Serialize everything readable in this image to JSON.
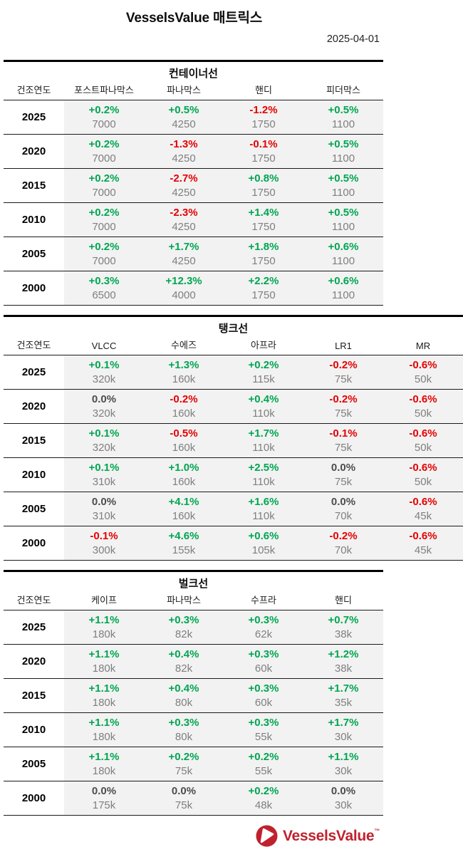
{
  "page": {
    "title": "VesselsValue 매트릭스",
    "date": "2025-04-01"
  },
  "colors": {
    "green": "#00a651",
    "red": "#e60000",
    "neutral": "#4d4d4d",
    "value_gray": "#7f7f7f",
    "brand_red": "#c0212e"
  },
  "year_col_header": "건조연도",
  "tables": [
    {
      "name": "컨테이너선",
      "columns": [
        "포스트파나막스",
        "파나막스",
        "핸디",
        "피더막스"
      ],
      "rows": [
        {
          "year": "2025",
          "cells": [
            {
              "pct": "+0.2%",
              "value": "7000"
            },
            {
              "pct": "+0.5%",
              "value": "4250"
            },
            {
              "pct": "-1.2%",
              "value": "1750"
            },
            {
              "pct": "+0.5%",
              "value": "1100"
            }
          ]
        },
        {
          "year": "2020",
          "cells": [
            {
              "pct": "+0.2%",
              "value": "7000"
            },
            {
              "pct": "-1.3%",
              "value": "4250"
            },
            {
              "pct": "-0.1%",
              "value": "1750"
            },
            {
              "pct": "+0.5%",
              "value": "1100"
            }
          ]
        },
        {
          "year": "2015",
          "cells": [
            {
              "pct": "+0.2%",
              "value": "7000"
            },
            {
              "pct": "-2.7%",
              "value": "4250"
            },
            {
              "pct": "+0.8%",
              "value": "1750"
            },
            {
              "pct": "+0.5%",
              "value": "1100"
            }
          ]
        },
        {
          "year": "2010",
          "cells": [
            {
              "pct": "+0.2%",
              "value": "7000"
            },
            {
              "pct": "-2.3%",
              "value": "4250"
            },
            {
              "pct": "+1.4%",
              "value": "1750"
            },
            {
              "pct": "+0.5%",
              "value": "1100"
            }
          ]
        },
        {
          "year": "2005",
          "cells": [
            {
              "pct": "+0.2%",
              "value": "7000"
            },
            {
              "pct": "+1.7%",
              "value": "4250"
            },
            {
              "pct": "+1.8%",
              "value": "1750"
            },
            {
              "pct": "+0.6%",
              "value": "1100"
            }
          ]
        },
        {
          "year": "2000",
          "cells": [
            {
              "pct": "+0.3%",
              "value": "6500"
            },
            {
              "pct": "+12.3%",
              "value": "4000"
            },
            {
              "pct": "+2.2%",
              "value": "1750"
            },
            {
              "pct": "+0.6%",
              "value": "1100"
            }
          ]
        }
      ]
    },
    {
      "name": "탱크선",
      "columns": [
        "VLCC",
        "수에즈",
        "아프라",
        "LR1",
        "MR"
      ],
      "rows": [
        {
          "year": "2025",
          "cells": [
            {
              "pct": "+0.1%",
              "value": "320k"
            },
            {
              "pct": "+1.3%",
              "value": "160k"
            },
            {
              "pct": "+0.2%",
              "value": "115k"
            },
            {
              "pct": "-0.2%",
              "value": "75k"
            },
            {
              "pct": "-0.6%",
              "value": "50k"
            }
          ]
        },
        {
          "year": "2020",
          "cells": [
            {
              "pct": "0.0%",
              "value": "320k"
            },
            {
              "pct": "-0.2%",
              "value": "160k"
            },
            {
              "pct": "+0.4%",
              "value": "110k"
            },
            {
              "pct": "-0.2%",
              "value": "75k"
            },
            {
              "pct": "-0.6%",
              "value": "50k"
            }
          ]
        },
        {
          "year": "2015",
          "cells": [
            {
              "pct": "+0.1%",
              "value": "320k"
            },
            {
              "pct": "-0.5%",
              "value": "160k"
            },
            {
              "pct": "+1.7%",
              "value": "110k"
            },
            {
              "pct": "-0.1%",
              "value": "75k"
            },
            {
              "pct": "-0.6%",
              "value": "50k"
            }
          ]
        },
        {
          "year": "2010",
          "cells": [
            {
              "pct": "+0.1%",
              "value": "310k"
            },
            {
              "pct": "+1.0%",
              "value": "160k"
            },
            {
              "pct": "+2.5%",
              "value": "110k"
            },
            {
              "pct": "0.0%",
              "value": "75k"
            },
            {
              "pct": "-0.6%",
              "value": "50k"
            }
          ]
        },
        {
          "year": "2005",
          "cells": [
            {
              "pct": "0.0%",
              "value": "310k"
            },
            {
              "pct": "+4.1%",
              "value": "160k"
            },
            {
              "pct": "+1.6%",
              "value": "110k"
            },
            {
              "pct": "0.0%",
              "value": "70k"
            },
            {
              "pct": "-0.6%",
              "value": "45k"
            }
          ]
        },
        {
          "year": "2000",
          "cells": [
            {
              "pct": "-0.1%",
              "value": "300k"
            },
            {
              "pct": "+4.6%",
              "value": "155k"
            },
            {
              "pct": "+0.6%",
              "value": "105k"
            },
            {
              "pct": "-0.2%",
              "value": "70k"
            },
            {
              "pct": "-0.6%",
              "value": "45k"
            }
          ]
        }
      ]
    },
    {
      "name": "벌크선",
      "columns": [
        "케이프",
        "파나막스",
        "수프라",
        "핸디"
      ],
      "rows": [
        {
          "year": "2025",
          "cells": [
            {
              "pct": "+1.1%",
              "value": "180k"
            },
            {
              "pct": "+0.3%",
              "value": "82k"
            },
            {
              "pct": "+0.3%",
              "value": "62k"
            },
            {
              "pct": "+0.7%",
              "value": "38k"
            }
          ]
        },
        {
          "year": "2020",
          "cells": [
            {
              "pct": "+1.1%",
              "value": "180k"
            },
            {
              "pct": "+0.4%",
              "value": "82k"
            },
            {
              "pct": "+0.3%",
              "value": "60k"
            },
            {
              "pct": "+1.2%",
              "value": "38k"
            }
          ]
        },
        {
          "year": "2015",
          "cells": [
            {
              "pct": "+1.1%",
              "value": "180k"
            },
            {
              "pct": "+0.4%",
              "value": "80k"
            },
            {
              "pct": "+0.3%",
              "value": "60k"
            },
            {
              "pct": "+1.7%",
              "value": "35k"
            }
          ]
        },
        {
          "year": "2010",
          "cells": [
            {
              "pct": "+1.1%",
              "value": "180k"
            },
            {
              "pct": "+0.3%",
              "value": "80k"
            },
            {
              "pct": "+0.3%",
              "value": "55k"
            },
            {
              "pct": "+1.7%",
              "value": "30k"
            }
          ]
        },
        {
          "year": "2005",
          "cells": [
            {
              "pct": "+1.1%",
              "value": "180k"
            },
            {
              "pct": "+0.2%",
              "value": "75k"
            },
            {
              "pct": "+0.2%",
              "value": "55k"
            },
            {
              "pct": "+1.1%",
              "value": "30k"
            }
          ]
        },
        {
          "year": "2000",
          "cells": [
            {
              "pct": "0.0%",
              "value": "175k"
            },
            {
              "pct": "0.0%",
              "value": "75k"
            },
            {
              "pct": "+0.2%",
              "value": "48k"
            },
            {
              "pct": "0.0%",
              "value": "30k"
            }
          ]
        }
      ]
    }
  ],
  "footer": {
    "brand": "VesselsValue",
    "tm": "™"
  }
}
